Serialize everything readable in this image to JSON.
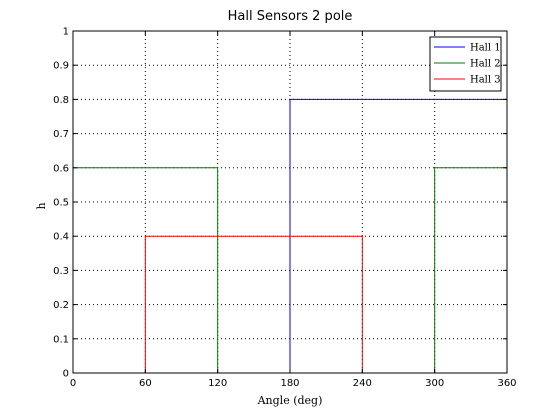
{
  "chart_data": {
    "type": "line",
    "title": "Hall Sensors 2 pole",
    "xlabel": "Angle (deg)",
    "ylabel": "h",
    "xlim": [
      0,
      360
    ],
    "ylim": [
      0,
      1
    ],
    "xticks": [
      0,
      60,
      120,
      180,
      240,
      300,
      360
    ],
    "yticks": [
      0,
      0.1,
      0.2,
      0.3,
      0.4,
      0.5,
      0.6,
      0.7,
      0.8,
      0.9,
      1
    ],
    "xtick_labels": [
      "0",
      "60",
      "120",
      "180",
      "240",
      "300",
      "360"
    ],
    "ytick_labels": [
      "0",
      "0.1",
      "0.2",
      "0.3",
      "0.4",
      "0.5",
      "0.6",
      "0.7",
      "0.8",
      "0.9",
      "1"
    ],
    "grid": true,
    "legend_position": "top-right",
    "series": [
      {
        "name": "Hall 1",
        "color": "#0000ff",
        "x": [
          0,
          180,
          180,
          360,
          360
        ],
        "y": [
          0,
          0,
          0.8,
          0.8,
          0.4
        ]
      },
      {
        "name": "Hall 2",
        "color": "#007f00",
        "x": [
          0,
          120,
          120,
          300,
          300,
          360
        ],
        "y": [
          0.6,
          0.6,
          0,
          0,
          0.6,
          0.6
        ]
      },
      {
        "name": "Hall 3",
        "color": "#ff0000",
        "x": [
          60,
          60,
          240,
          240
        ],
        "y": [
          0,
          0.4,
          0.4,
          0
        ]
      }
    ]
  }
}
